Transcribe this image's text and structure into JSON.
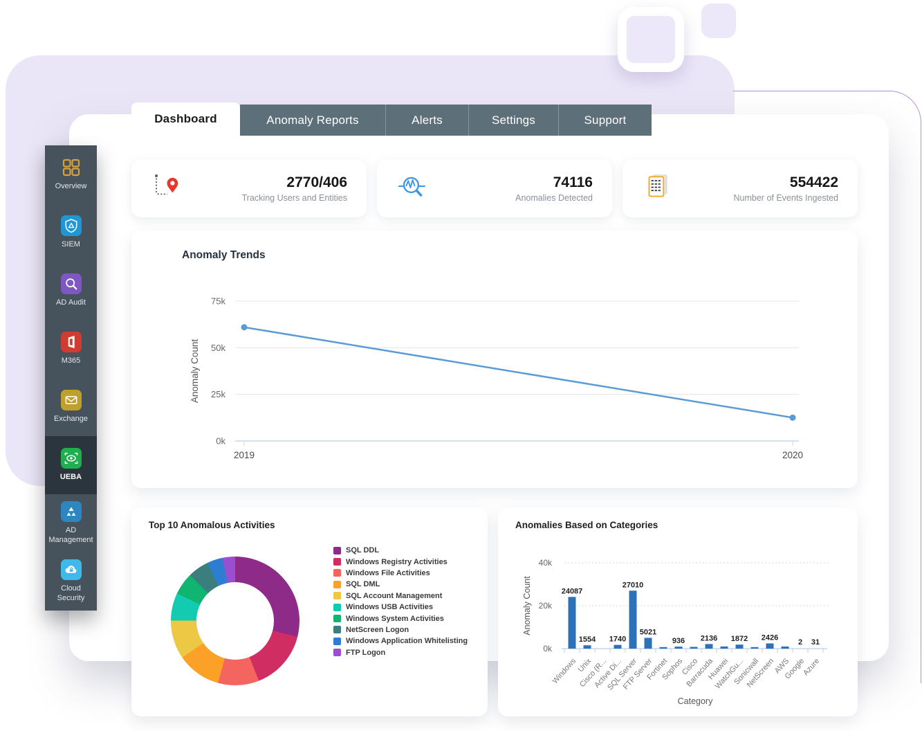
{
  "tabs": [
    {
      "label": "Dashboard",
      "active": true
    },
    {
      "label": "Anomaly Reports",
      "active": false
    },
    {
      "label": "Alerts",
      "active": false
    },
    {
      "label": "Settings",
      "active": false
    },
    {
      "label": "Support",
      "active": false
    }
  ],
  "sidebar": {
    "selected": "UEBA",
    "items": [
      {
        "label": "Overview",
        "icon": "grid-icon"
      },
      {
        "label": "SIEM",
        "icon": "shield-icon"
      },
      {
        "label": "AD Audit",
        "icon": "magnifier-icon"
      },
      {
        "label": "M365",
        "icon": "office-icon"
      },
      {
        "label": "Exchange",
        "icon": "envelope-icon"
      },
      {
        "label": "UEBA",
        "icon": "eye-icon"
      },
      {
        "label": "AD Management",
        "icon": "triangles-icon"
      },
      {
        "label": "Cloud Security",
        "icon": "cloud-lock-icon"
      }
    ]
  },
  "stats": [
    {
      "value": "2770/406",
      "label": "Tracking Users and Entities",
      "icon": "tracking-pin-icon"
    },
    {
      "value": "74116",
      "label": "Anomalies Detected",
      "icon": "anomaly-magnifier-icon"
    },
    {
      "value": "554422",
      "label": "Number of Events Ingested",
      "icon": "events-documents-icon"
    }
  ],
  "chart_data": [
    {
      "id": "anomaly-trends",
      "type": "line",
      "title": "Anomaly Trends",
      "xlabel": "",
      "ylabel": "Anomaly Count",
      "x": [
        "2019",
        "2020"
      ],
      "values": [
        61000,
        12500
      ],
      "ylim": [
        0,
        75000
      ],
      "yticks": [
        {
          "label": "0k",
          "value": 0
        },
        {
          "label": "25k",
          "value": 25000
        },
        {
          "label": "50k",
          "value": 50000
        },
        {
          "label": "75k",
          "value": 75000
        }
      ],
      "line_color": "#5b9bd5",
      "grid": true,
      "legend": "none"
    },
    {
      "id": "top-10-anomalous-activities",
      "type": "pie",
      "donut": true,
      "title": "Top 10 Anomalous Activities",
      "legend_position": "right",
      "segments": [
        {
          "label": "SQL DDL",
          "pct": 29.0,
          "color": "#8e2a87"
        },
        {
          "label": "Windows Registry Activities",
          "pct": 15.0,
          "color": "#d02d63"
        },
        {
          "label": "Windows File Activities",
          "pct": 10.3,
          "color": "#f4655f"
        },
        {
          "label": "SQL DML",
          "pct": 11.1,
          "color": "#fba127"
        },
        {
          "label": "SQL Account Management",
          "pct": 9.7,
          "color": "#edc845"
        },
        {
          "label": "Windows USB Activities",
          "pct": 6.9,
          "color": "#12cbb0"
        },
        {
          "label": "Windows System Activities",
          "pct": 5.6,
          "color": "#10b571"
        },
        {
          "label": "NetScreen Logon",
          "pct": 5.3,
          "color": "#3a7e7d"
        },
        {
          "label": "Windows Application Whitelisting",
          "pct": 3.9,
          "color": "#2d7dd2"
        },
        {
          "label": "FTP Logon",
          "pct": 3.2,
          "color": "#9a4fd0"
        }
      ]
    },
    {
      "id": "anomalies-based-on-categories",
      "type": "bar",
      "title": "Anomalies Based on Categories",
      "xlabel": "Category",
      "ylabel": "Anomaly Count",
      "ylim": [
        0,
        40000
      ],
      "yticks": [
        {
          "label": "0k",
          "value": 0
        },
        {
          "label": "20k",
          "value": 20000
        },
        {
          "label": "40k",
          "value": 40000
        }
      ],
      "bar_color": "#2d72b8",
      "categories": [
        "Windows",
        "Unix",
        "Cisco (R...",
        "Active Di...",
        "SQL Server",
        "FTP Server",
        "Fortinet",
        "Sophos",
        "Cisco",
        "Barracuda",
        "Huawei",
        "WatchGu...",
        "Sonicwall",
        "NetScreen",
        "AWS",
        "Google",
        "Azure"
      ],
      "values": [
        24087,
        1554,
        100,
        1740,
        27010,
        5021,
        700,
        936,
        800,
        2136,
        1000,
        1872,
        700,
        2426,
        1000,
        2,
        31
      ],
      "bar_labels": [
        "24087",
        "1554",
        "",
        "1740",
        "27010",
        "5021",
        "",
        "936",
        "",
        "2136",
        "",
        "1872",
        "",
        "2426",
        "",
        "2",
        "31"
      ]
    }
  ],
  "colors": {
    "backdrop_lavender": "#ebe6f7",
    "purple_outline": "#b191dd",
    "sidebar_bg": "#46525c",
    "sidebar_selected_bg": "#2b353d",
    "tabbar_bg": "#5d6f79",
    "trend_line": "#5b9bd5",
    "bar_fill": "#2d72b8",
    "stat_pin_red": "#e8362d",
    "stat_magnifier_blue": "#3b97e3",
    "stat_docs_orange": "#f5a623"
  }
}
